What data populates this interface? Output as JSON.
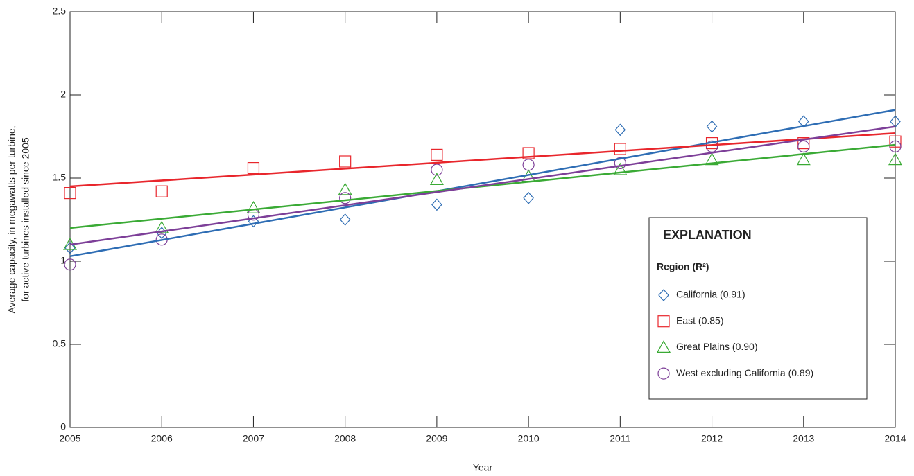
{
  "chart_data": {
    "type": "scatter",
    "xlabel": "Year",
    "ylabel": [
      "Average capacity, in megawatts per turbine,",
      "for active turbines installed since 2005"
    ],
    "x": [
      2005,
      2006,
      2007,
      2008,
      2009,
      2010,
      2011,
      2012,
      2013,
      2014
    ],
    "xlim": [
      2005,
      2014
    ],
    "xticks": [
      2005,
      2006,
      2007,
      2008,
      2009,
      2010,
      2011,
      2012,
      2013,
      2014
    ],
    "ylim": [
      0,
      2.5
    ],
    "yticks": [
      0,
      0.5,
      1,
      1.5,
      2,
      2.5
    ],
    "grid": false,
    "legend": {
      "title": "EXPLANATION",
      "subtitle": "Region (R²)",
      "position": "lower right"
    },
    "series": [
      {
        "name": "California (0.91)",
        "color": "#2e6db4",
        "marker": "diamond",
        "values": [
          1.08,
          1.17,
          1.24,
          1.25,
          1.34,
          1.38,
          1.79,
          1.81,
          1.84,
          1.84
        ],
        "trend": {
          "x": [
            2005,
            2014
          ],
          "values": [
            1.03,
            1.91
          ]
        }
      },
      {
        "name": "East (0.85)",
        "color": "#e8262c",
        "marker": "square",
        "values": [
          1.41,
          1.42,
          1.56,
          1.6,
          1.64,
          1.65,
          1.675,
          1.71,
          1.71,
          1.72
        ],
        "trend": {
          "x": [
            2005,
            2014
          ],
          "values": [
            1.45,
            1.77
          ]
        }
      },
      {
        "name": "Great Plains (0.90)",
        "color": "#3aaa35",
        "marker": "triangle",
        "values": [
          1.1,
          1.2,
          1.32,
          1.43,
          1.49,
          1.51,
          1.55,
          1.61,
          1.61,
          1.61
        ],
        "trend": {
          "x": [
            2005,
            2014
          ],
          "values": [
            1.2,
            1.7
          ]
        }
      },
      {
        "name": "West excluding California (0.89)",
        "color": "#7d3f98",
        "marker": "circle",
        "values": [
          0.98,
          1.13,
          1.28,
          1.38,
          1.55,
          1.58,
          1.59,
          1.69,
          1.69,
          1.69
        ],
        "trend": {
          "x": [
            2005,
            2014
          ],
          "values": [
            1.1,
            1.81
          ]
        }
      }
    ]
  }
}
